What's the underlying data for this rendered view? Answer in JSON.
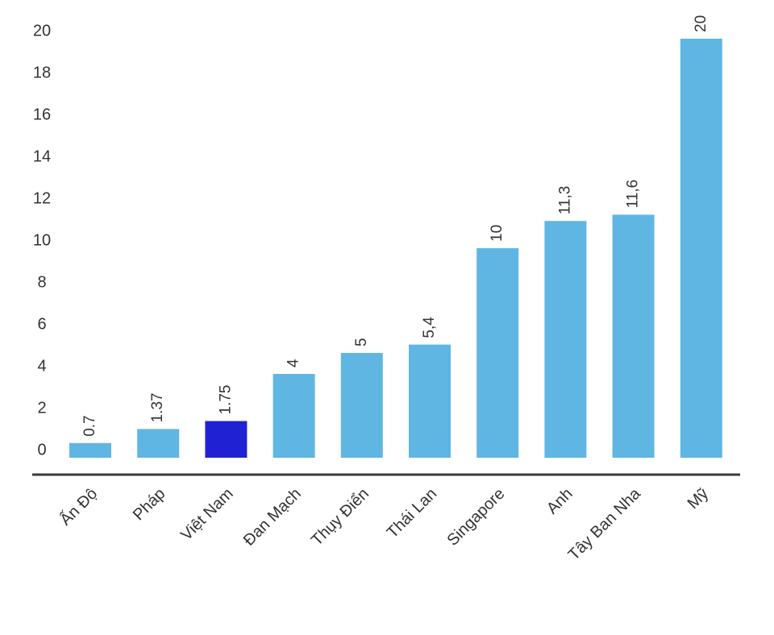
{
  "chart_data": {
    "type": "bar",
    "title": "",
    "xlabel": "",
    "ylabel": "",
    "ylim": [
      0,
      20
    ],
    "y_ticks": [
      "0",
      "2",
      "4",
      "6",
      "8",
      "10",
      "12",
      "14",
      "16",
      "18",
      "20"
    ],
    "grid": false,
    "legend": "none",
    "categories": [
      "Ấn Độ",
      "Pháp",
      "Việt Nam",
      "Đan Mạch",
      "Thụy Điển",
      "Thái Lan",
      "Singapore",
      "Anh",
      "Tây Ban Nha",
      "Mỹ"
    ],
    "values": [
      0.7,
      1.37,
      1.75,
      4,
      5,
      5.4,
      10,
      11.3,
      11.6,
      20
    ],
    "value_labels": [
      "0.7",
      "1.37",
      "1.75",
      "4",
      "5",
      "5,4",
      "10",
      "11,3",
      "11,6",
      "20"
    ],
    "highlight_index": 2,
    "colors": {
      "bar": "#5fb6e3",
      "highlight": "#2121d4",
      "axis": "#3a3a3a",
      "text": "#333333"
    }
  }
}
